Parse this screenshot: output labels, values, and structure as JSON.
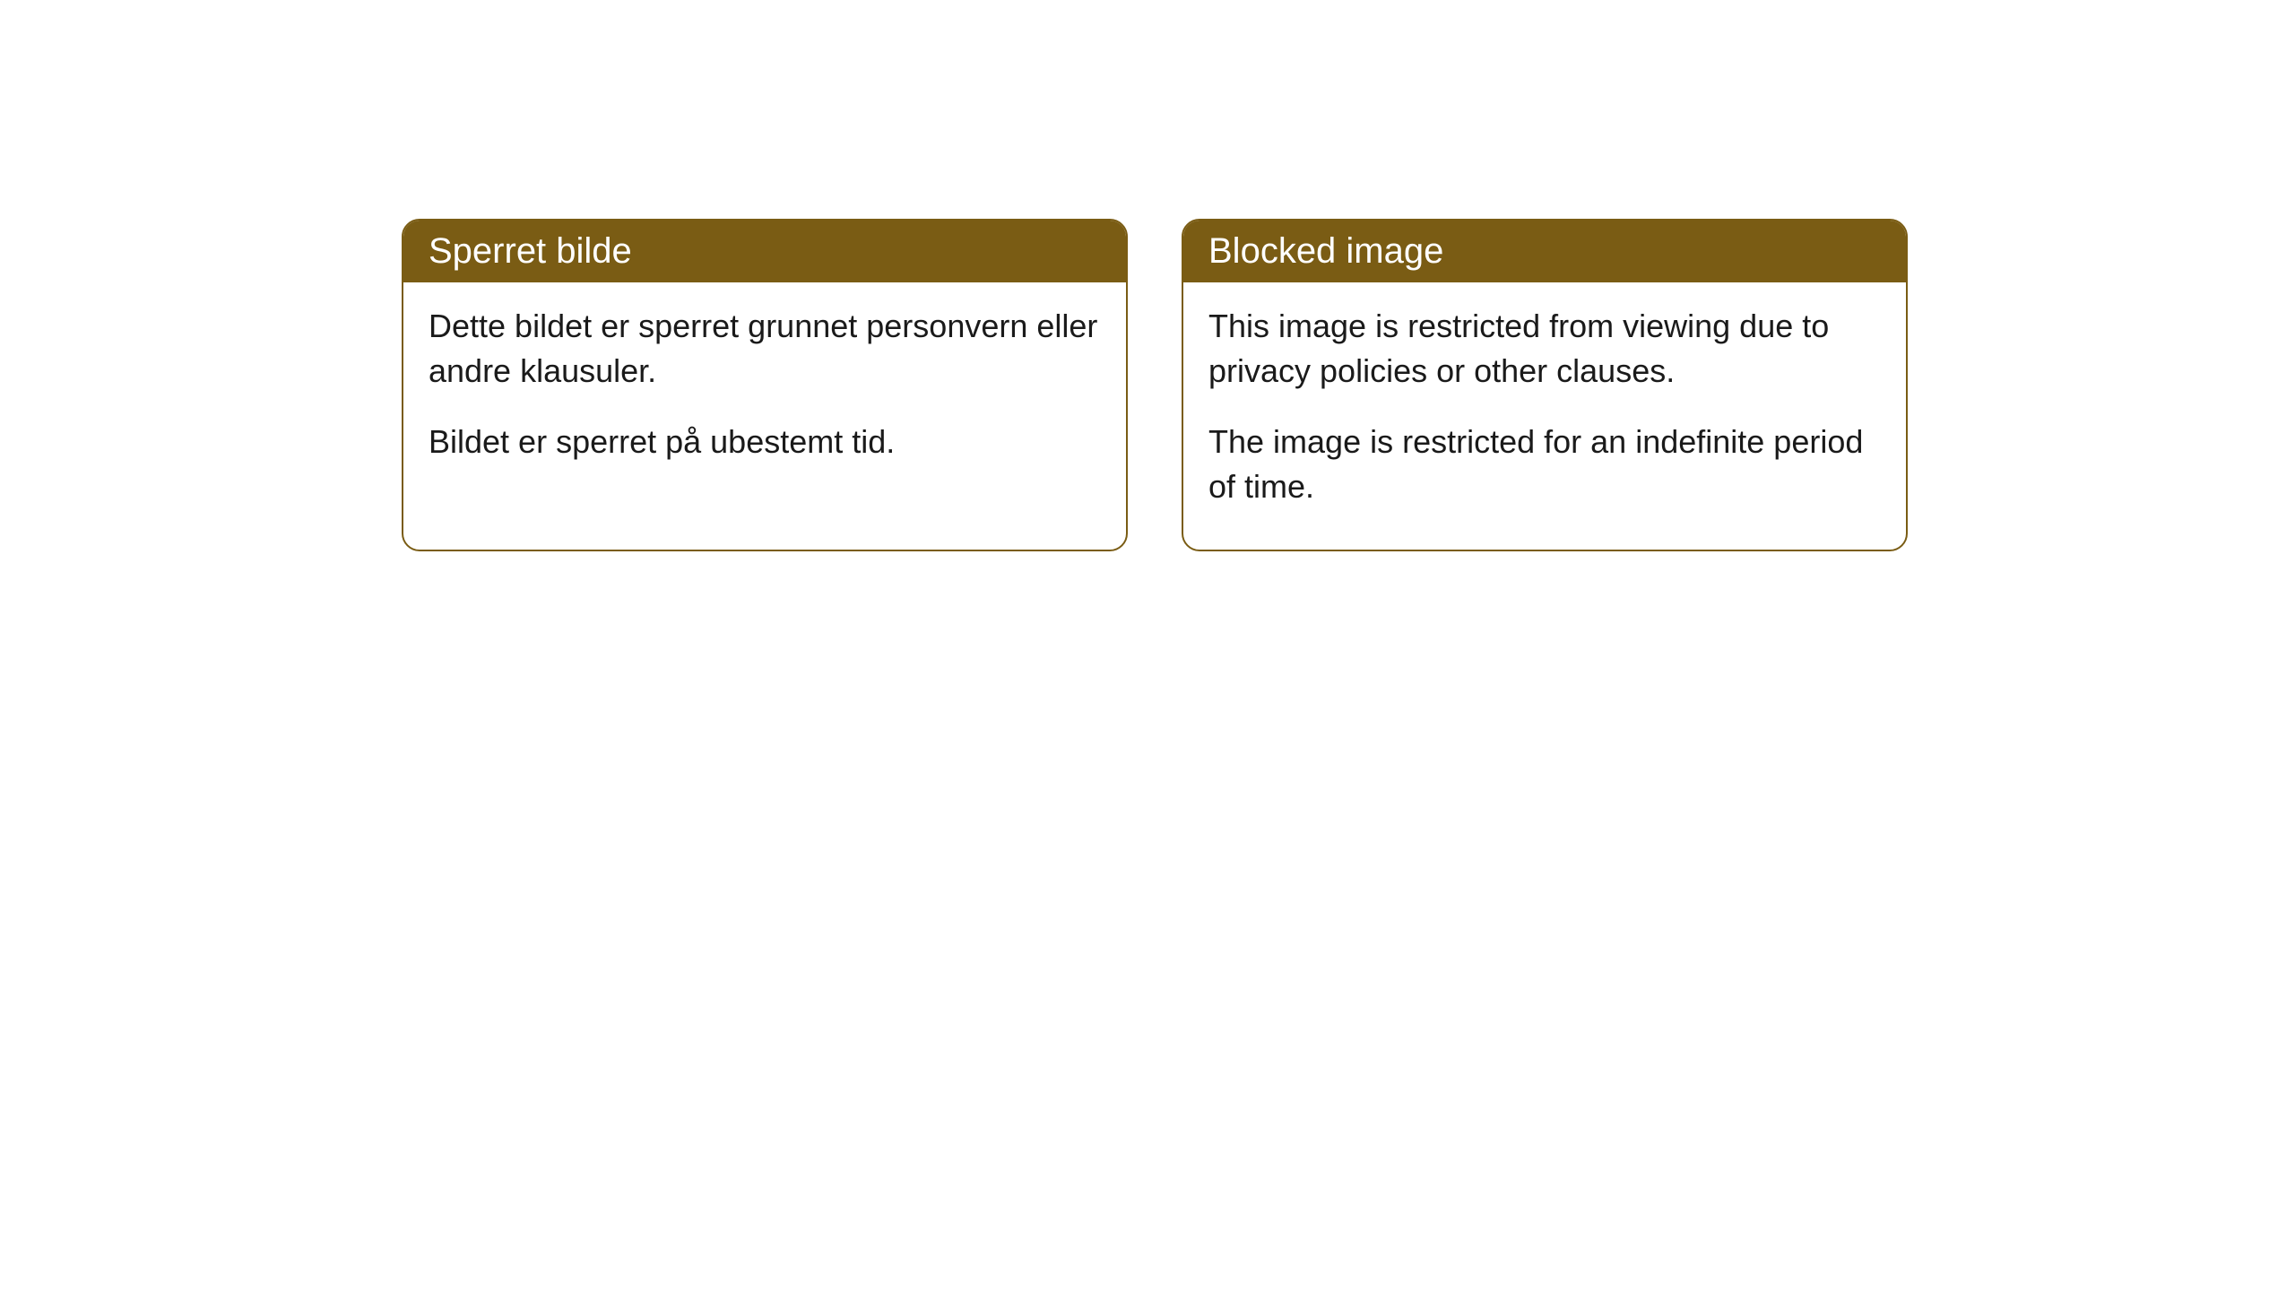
{
  "cards": [
    {
      "title": "Sperret bilde",
      "paragraph1": "Dette bildet er sperret grunnet personvern eller andre klausuler.",
      "paragraph2": "Bildet er sperret på ubestemt tid."
    },
    {
      "title": "Blocked image",
      "paragraph1": "This image is restricted from viewing due to privacy policies or other clauses.",
      "paragraph2": "The image is restricted for an indefinite period of time."
    }
  ],
  "styling": {
    "header_background": "#7a5c14",
    "header_text_color": "#ffffff",
    "border_color": "#7a5c14",
    "body_background": "#ffffff",
    "body_text_color": "#1a1a1a",
    "border_radius": 20,
    "title_fontsize": 40,
    "body_fontsize": 36
  }
}
